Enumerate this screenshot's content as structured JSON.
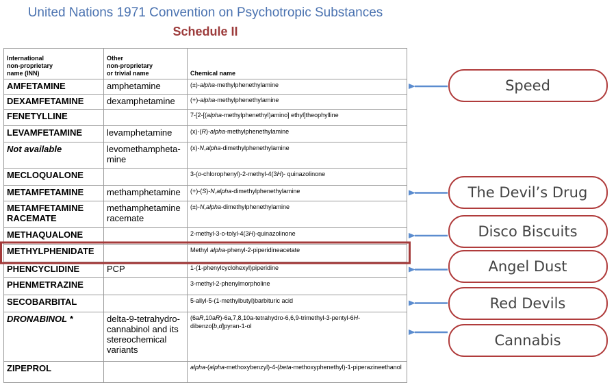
{
  "header": {
    "title": "United Nations 1971 Convention on Psychotropic Substances",
    "subtitle": "Schedule II"
  },
  "table": {
    "columns": [
      [
        "International",
        "non-proprietary",
        "name (INN)"
      ],
      [
        "Other",
        "non-proprietary",
        "or trivial name"
      ],
      [
        "Chemical name"
      ]
    ],
    "rows": [
      {
        "inn": "AMFETAMINE",
        "other": "amphetamine",
        "chemical": [
          "(±)-",
          {
            "italic": "alpha"
          },
          "-methylphenethylamine"
        ]
      },
      {
        "inn": "DEXAMFETAMINE",
        "other": "dexamphetamine",
        "chemical": [
          "(+)-",
          {
            "italic": "alpha"
          },
          "-methylphenethylamine"
        ]
      },
      {
        "inn": "FENETYLLINE",
        "chemical": [
          "7-[2-[(",
          {
            "italic": "alpha"
          },
          "-methylphenethyl)amino] ethyl]theophylline"
        ]
      },
      {
        "inn": "LEVAMFETAMINE",
        "other": "levamphetamine",
        "chemical": [
          "(x)-(",
          {
            "italic": "R"
          },
          ")-",
          {
            "italic": "alpha"
          },
          "-methylphenethylamine"
        ]
      },
      {
        "inn": "Not available",
        "inn_italic": true,
        "other": "levomethampheta-mine",
        "chemical": [
          "(x)-",
          {
            "italic": "N"
          },
          ",",
          {
            "italic": "alpha"
          },
          "-dimethylphenethylamine"
        ]
      },
      {
        "inn": "MECLOQUALONE",
        "chemical": [
          "3-(",
          {
            "italic": "o"
          },
          "-chlorophenyl)-2-methyl-4(3",
          {
            "italic": "H"
          },
          ")- quinazolinone"
        ]
      },
      {
        "inn": "METAMFETAMINE",
        "other": "methamphetamine",
        "chemical": [
          "(+)-(",
          {
            "italic": "S"
          },
          ")-",
          {
            "italic": "N"
          },
          ",",
          {
            "italic": "alpha"
          },
          "-dimethylphenethylamine"
        ]
      },
      {
        "inn": "METAMFETAMINE RACEMATE",
        "other": "methamphetamine racemate",
        "chemical": [
          "(±)-",
          {
            "italic": "N"
          },
          ",",
          {
            "italic": "alpha"
          },
          "-dimethylphenethylamine"
        ]
      },
      {
        "inn": "METHAQUALONE",
        "chemical": [
          "2-methyl-3-o-tolyl-4(3",
          {
            "italic": "H"
          },
          ")-quinazolinone"
        ]
      },
      {
        "inn": "METHYLPHENIDATE",
        "highlight": true,
        "chemical": [
          "Methyl ",
          {
            "italic": "alpha"
          },
          "-phenyl-2-piperidineacetate"
        ]
      },
      {
        "inn": "PHENCYCLIDINE",
        "other": "PCP",
        "chemical": [
          "1-(1-phenylcyclohexyl)piperidine"
        ]
      },
      {
        "inn": "PHENMETRAZINE",
        "chemical": [
          "3-methyl-2-phenylmorpholine"
        ]
      },
      {
        "inn": "SECOBARBITAL",
        "chemical": [
          "5-allyl-5-(1-methylbutyl)barbituric acid"
        ]
      },
      {
        "inn": "DRONABINOL *",
        "inn_italic": true,
        "other": "delta-9-tetrahydro-cannabinol and its stereochemical variants",
        "chemical": [
          "(6a",
          {
            "italic": "R"
          },
          ",10a",
          {
            "italic": "R"
          },
          ")-6a,7,8,10a-tetrahydro-6,6,9-trimethyl-3-pentyl-6",
          {
            "italic": "H"
          },
          "-dibenzo[",
          {
            "italic": "b"
          },
          ",",
          {
            "italic": "d"
          },
          "]pyran-1-ol"
        ]
      },
      {
        "inn": "ZIPEPROL",
        "chemical": [
          {
            "italic": "alpha"
          },
          "-(",
          {
            "italic": "alpha"
          },
          "-methoxybenzyl)-4-(",
          {
            "italic": "beta"
          },
          "-methoxyphenethyl)-1-piperazineethanol"
        ]
      }
    ]
  },
  "callouts": [
    {
      "label": "Speed",
      "row": 0
    },
    {
      "label": "The Devil’s Drug",
      "row": 6
    },
    {
      "label": "Disco Biscuits",
      "row": 8
    },
    {
      "label": "Angel Dust",
      "row": 10
    },
    {
      "label": "Red Devils",
      "row": 12
    },
    {
      "label": "Cannabis",
      "row": 13
    }
  ]
}
